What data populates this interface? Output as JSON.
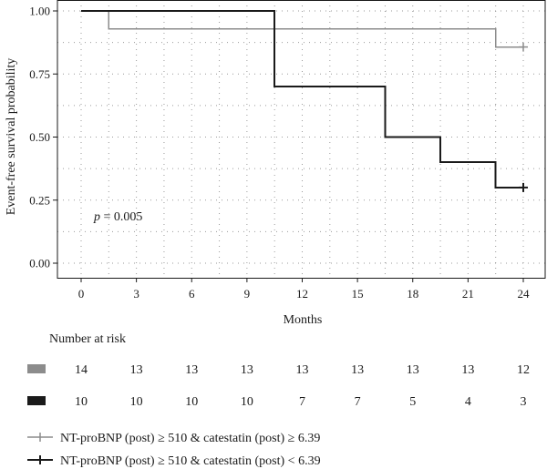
{
  "chart_data": {
    "type": "line",
    "ylabel": "Event-free survival probability",
    "xlabel": "Months",
    "xlim": [
      0,
      24
    ],
    "ylim": [
      0,
      1
    ],
    "x_ticks": [
      "0",
      "3",
      "6",
      "9",
      "12",
      "15",
      "18",
      "21",
      "24"
    ],
    "y_ticks": [
      "0.00",
      "0.25",
      "0.50",
      "0.75",
      "1.00"
    ],
    "grid": true,
    "annotation": {
      "p_symbol": "p",
      "p_rest": " = 0.005"
    },
    "series": [
      {
        "name": "NT-proBNP (post) ≥ 510 & catestatin (post) ≥ 6.39",
        "color": "#8c8c8c",
        "steps": [
          [
            0,
            1.0
          ],
          [
            1.5,
            0.929
          ],
          [
            22.5,
            0.857
          ],
          [
            24,
            0.857
          ]
        ],
        "censor": [
          [
            24,
            0.857
          ]
        ]
      },
      {
        "name": "NT-proBNP (post) ≥ 510 & catestatin (post) < 6.39",
        "color": "#1a1a1a",
        "steps": [
          [
            0,
            1.0
          ],
          [
            10.5,
            0.7
          ],
          [
            16.5,
            0.5
          ],
          [
            19.5,
            0.4
          ],
          [
            22.5,
            0.3
          ],
          [
            24,
            0.3
          ]
        ],
        "censor": [
          [
            24,
            0.3
          ]
        ]
      }
    ],
    "risk_table": {
      "title": "Number at risk",
      "rows": [
        {
          "color": "#8c8c8c",
          "values": [
            "14",
            "13",
            "13",
            "13",
            "13",
            "13",
            "13",
            "13",
            "12"
          ]
        },
        {
          "color": "#1a1a1a",
          "values": [
            "10",
            "10",
            "10",
            "10",
            "7",
            "7",
            "5",
            "4",
            "3"
          ]
        }
      ]
    }
  }
}
